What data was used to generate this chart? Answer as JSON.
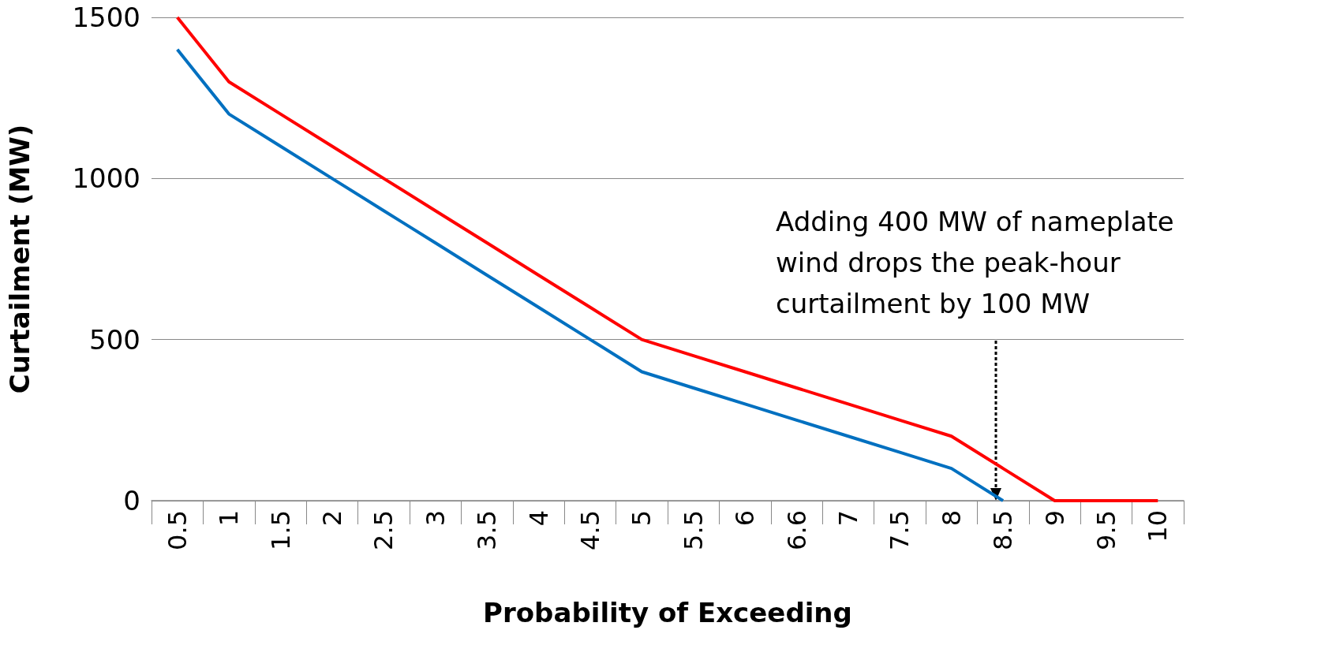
{
  "chart_data": {
    "type": "line",
    "xlabel": "Probability of Exceeding",
    "ylabel": "Curtailment (MW)",
    "categories": [
      "0.5",
      "1",
      "1.5",
      "2",
      "2.5",
      "3",
      "3.5",
      "4",
      "4.5",
      "5",
      "5.5",
      "6",
      "6.6",
      "7",
      "7.5",
      "8",
      "8.5",
      "9",
      "9.5",
      "10"
    ],
    "series": [
      {
        "color": "#ff0000",
        "values": [
          1500,
          1300,
          1200,
          1100,
          1000,
          900,
          800,
          700,
          600,
          500,
          450,
          400,
          350,
          300,
          250,
          200,
          100,
          0,
          0,
          0
        ]
      },
      {
        "color": "#0070c0",
        "values": [
          1400,
          1200,
          1100,
          1000,
          900,
          800,
          700,
          600,
          500,
          400,
          350,
          300,
          250,
          200,
          150,
          100,
          0,
          null,
          null,
          null
        ]
      }
    ],
    "ylim": [
      0,
      1500
    ],
    "yticks": [
      0,
      500,
      1000,
      1500
    ],
    "grid": "y",
    "marker": "none",
    "line_style": "solid",
    "annotations": [
      "Adding 400 MW of nameplate\nwind drops the peak-hour\ncurtailment by 100 MW"
    ]
  }
}
